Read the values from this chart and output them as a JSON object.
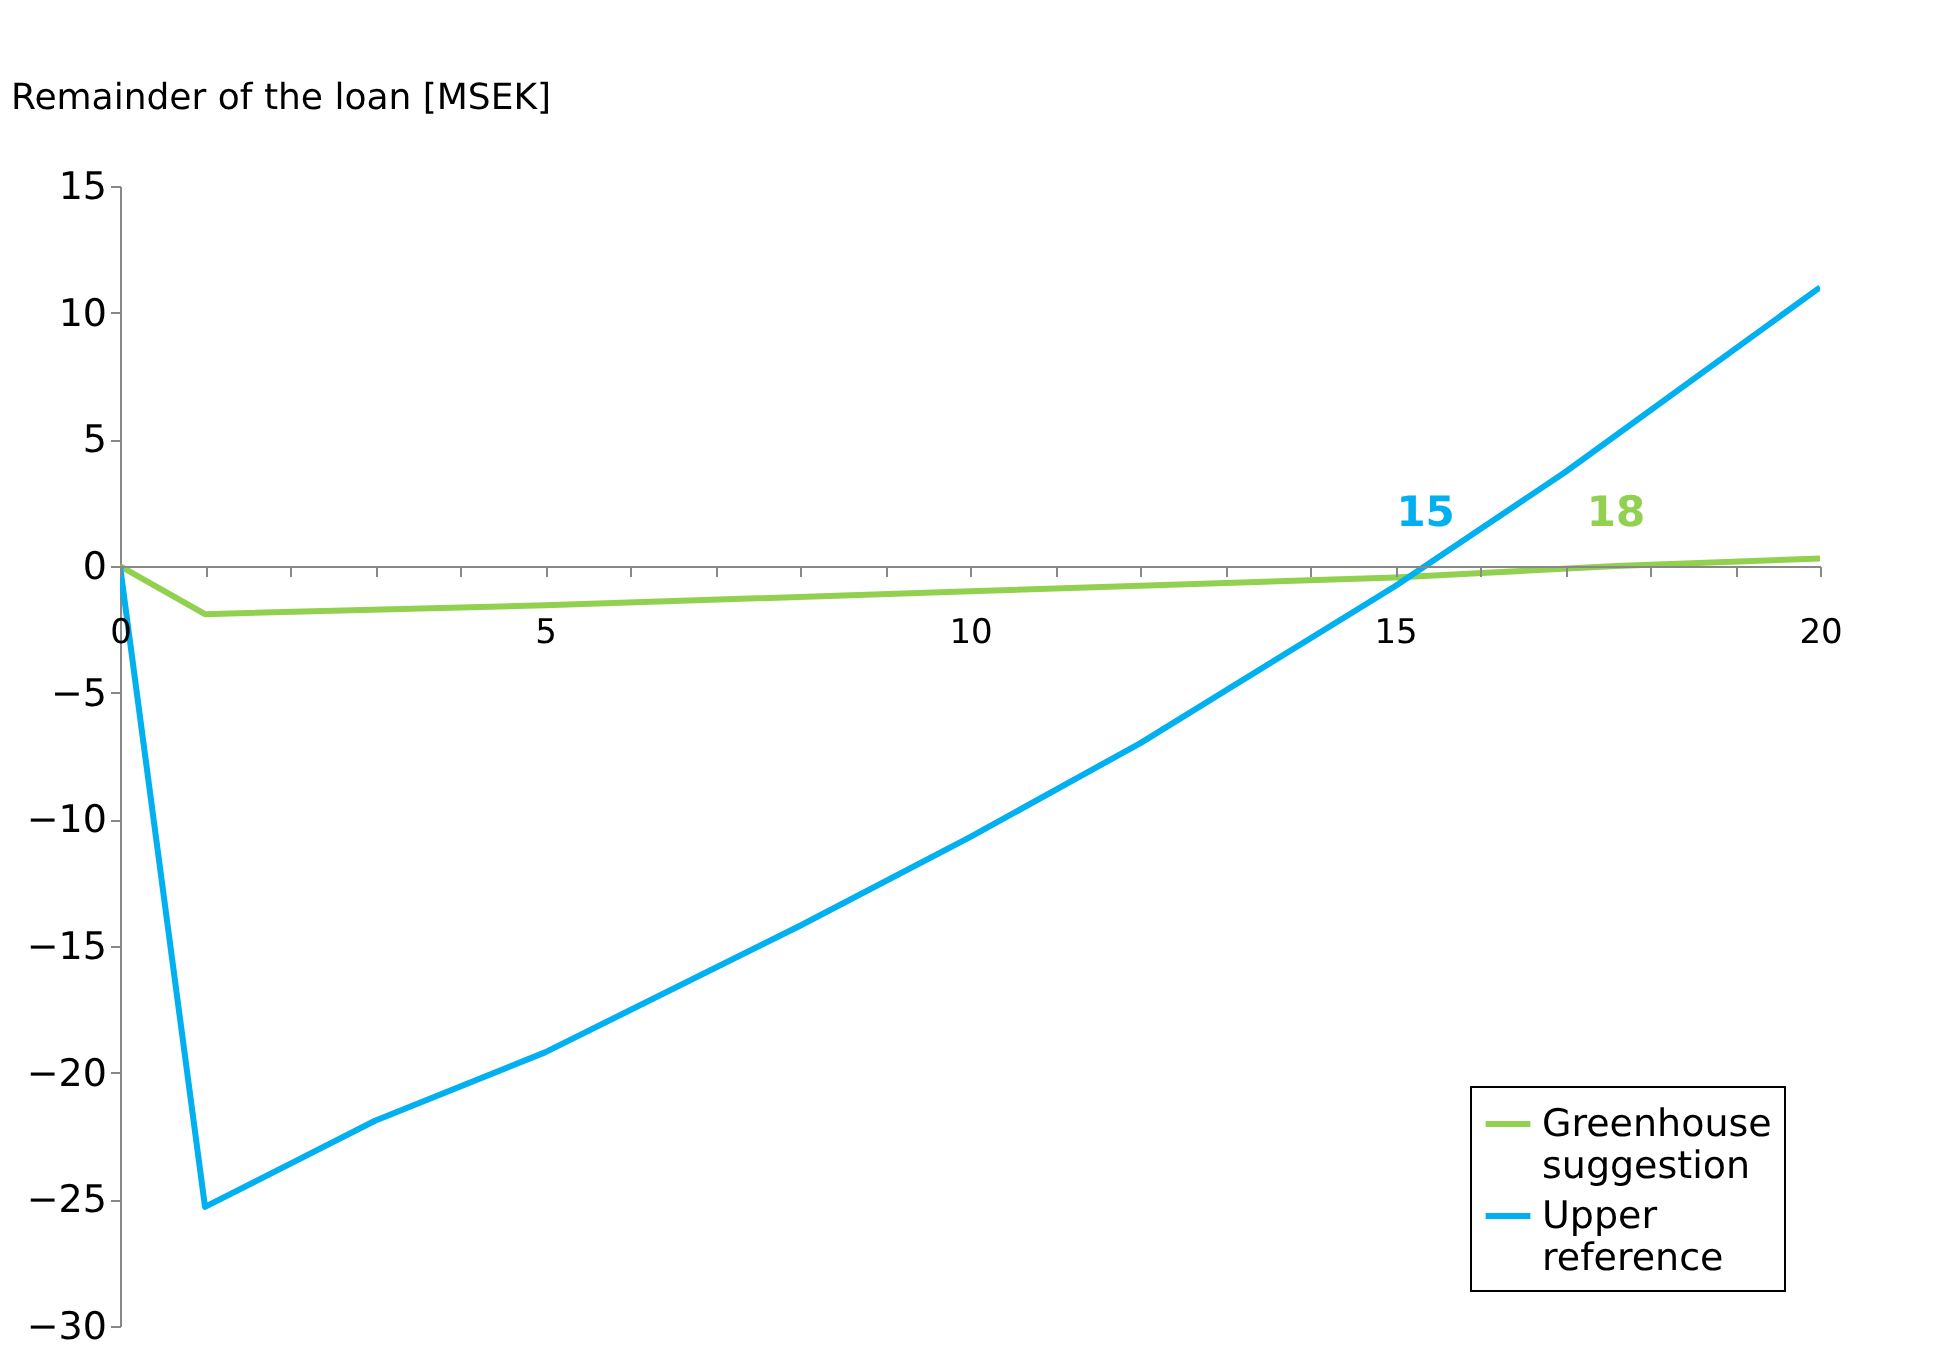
{
  "chart_data": {
    "type": "line",
    "ylabel": "Remainder of the loan  [MSEK]",
    "x": [
      0,
      1,
      2,
      3,
      5,
      8,
      10,
      12,
      15,
      17,
      20
    ],
    "series": [
      {
        "name": "Greenhouse suggestion",
        "color": "#92d050",
        "x": [
          0,
          1,
          5,
          10,
          15,
          17.6,
          20
        ],
        "values": [
          0,
          -1.9,
          -1.55,
          -1.0,
          -0.45,
          0,
          0.3
        ]
      },
      {
        "name": "Upper reference",
        "color": "#00b0f0",
        "values": [
          0,
          -25.3,
          -23.6,
          -21.9,
          -19.2,
          -14.2,
          -10.7,
          -7.0,
          -0.8,
          3.7,
          11.0
        ]
      }
    ],
    "annotations": [
      {
        "text": "15",
        "x": 15.36,
        "y": 0
      },
      {
        "text": "18",
        "x": 17.6,
        "y": 0
      }
    ],
    "xlim": [
      0,
      20
    ],
    "ylim": [
      -30,
      15
    ],
    "xticks": [
      0,
      {
        "value": 1,
        "label": null
      },
      {
        "value": 2,
        "label": null
      },
      {
        "value": 3,
        "label": null
      },
      {
        "value": 4,
        "label": null
      },
      5,
      {
        "value": 6,
        "label": null
      },
      {
        "value": 7,
        "label": null
      },
      {
        "value": 8,
        "label": null
      },
      {
        "value": 9,
        "label": null
      },
      10,
      {
        "value": 11,
        "label": null
      },
      {
        "value": 12,
        "label": null
      },
      {
        "value": 13,
        "label": null
      },
      {
        "value": 14,
        "label": null
      },
      15,
      {
        "value": 16,
        "label": null
      },
      {
        "value": 17,
        "label": null
      },
      {
        "value": 18,
        "label": null
      },
      {
        "value": 19,
        "label": null
      },
      20
    ],
    "yticks": [
      -30,
      -25,
      -20,
      -15,
      -10,
      -5,
      0,
      5,
      10,
      15
    ],
    "grid": false,
    "legend": "bottom right",
    "marker": "none",
    "line_style": "solid"
  }
}
